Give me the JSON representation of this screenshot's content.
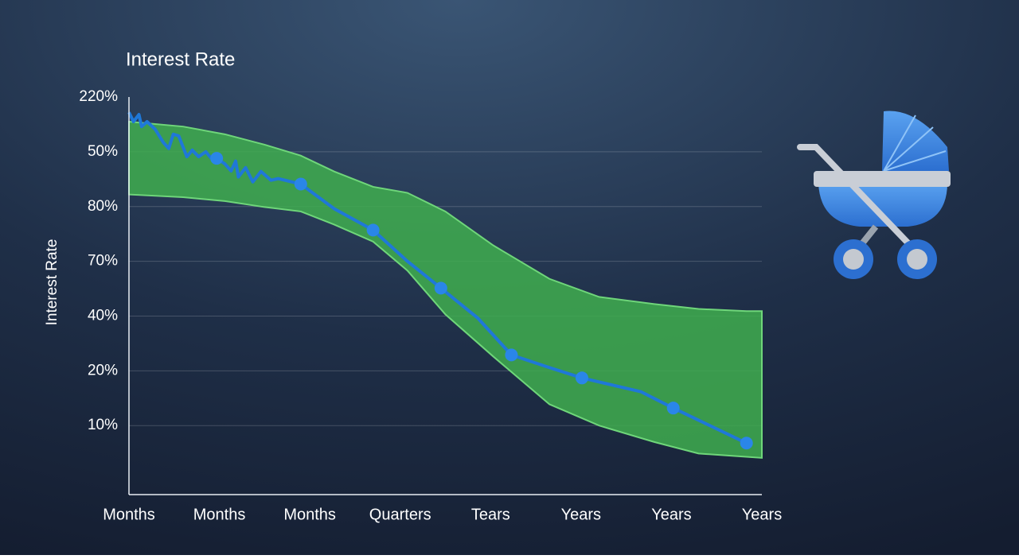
{
  "chart_data": {
    "type": "line",
    "title": "Interest Rate",
    "y_label": "Interest Rate",
    "categories": [
      "Months",
      "Months",
      "Months",
      "Quarters",
      "Tears",
      "Years",
      "Years",
      "Years"
    ],
    "y_categories": [
      "10%",
      "20%",
      "40%",
      "70%",
      "80%",
      "50%",
      "220%"
    ],
    "xlim": [
      0,
      7
    ],
    "ylim": [
      -1.26,
      6
    ],
    "grid": true,
    "line": {
      "color": "#1f78d8",
      "x": [
        0,
        0.05,
        0.11,
        0.14,
        0.2,
        0.29,
        0.38,
        0.44,
        0.49,
        0.55,
        0.64,
        0.7,
        0.77,
        0.85,
        0.91,
        0.97,
        1.06,
        1.13,
        1.18,
        1.21,
        1.29,
        1.37,
        1.46,
        1.57,
        1.65,
        1.9,
        2.27,
        2.7,
        3.08,
        3.45,
        3.86,
        4.23,
        4.65,
        5.01,
        5.66,
        6.02,
        6.83
      ],
      "values": [
        5.72,
        5.55,
        5.68,
        5.46,
        5.55,
        5.41,
        5.17,
        5.06,
        5.32,
        5.29,
        4.91,
        5.03,
        4.91,
        5.0,
        4.88,
        4.88,
        4.78,
        4.65,
        4.83,
        4.54,
        4.71,
        4.45,
        4.64,
        4.48,
        4.51,
        4.41,
        3.96,
        3.57,
        3.0,
        2.51,
        1.96,
        1.29,
        1.06,
        0.87,
        0.62,
        0.32,
        -0.32
      ]
    },
    "dots": {
      "color": "#2a86e8",
      "x": [
        0.97,
        1.9,
        2.7,
        3.45,
        4.23,
        5.01,
        6.02,
        6.83
      ],
      "values": [
        4.88,
        4.41,
        3.57,
        2.51,
        1.29,
        0.87,
        0.32,
        -0.32
      ]
    },
    "band": {
      "color": "#3fae4f",
      "x": [
        0,
        0.6,
        1.06,
        1.5,
        1.9,
        2.27,
        2.7,
        3.08,
        3.5,
        4.03,
        4.65,
        5.2,
        5.81,
        6.3,
        6.83,
        7
      ],
      "upper": [
        5.55,
        5.46,
        5.32,
        5.13,
        4.93,
        4.64,
        4.36,
        4.25,
        3.91,
        3.29,
        2.68,
        2.35,
        2.22,
        2.13,
        2.09,
        2.09
      ],
      "lower": [
        4.22,
        4.17,
        4.1,
        3.99,
        3.91,
        3.67,
        3.36,
        2.83,
        2.03,
        1.26,
        0.39,
        0,
        -0.3,
        -0.51,
        -0.57,
        -0.59
      ]
    }
  }
}
